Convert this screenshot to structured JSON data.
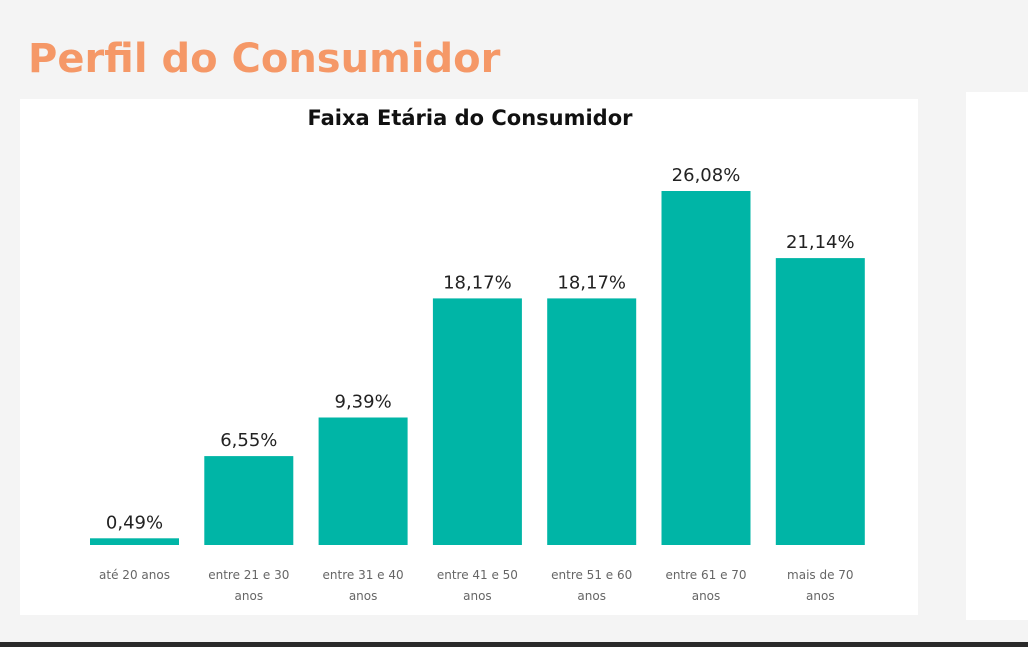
{
  "page": {
    "title": "Perfil do Consumidor"
  },
  "colors": {
    "title": "#f59867",
    "bar": "#00b5a6",
    "card": "#ffffff",
    "background": "#f4f4f4"
  },
  "chart_data": {
    "type": "bar",
    "title": "Faixa Etária do Consumidor",
    "xlabel": "",
    "ylabel": "",
    "ylim": [
      0,
      30
    ],
    "grid": false,
    "categories": [
      [
        "até 20 anos"
      ],
      [
        "entre 21 e 30",
        "anos"
      ],
      [
        "entre 31 e 40",
        "anos"
      ],
      [
        "entre 41 e 50",
        "anos"
      ],
      [
        "entre 51 e 60",
        "anos"
      ],
      [
        "entre 61 e 70",
        "anos"
      ],
      [
        "mais de 70",
        "anos"
      ]
    ],
    "values": [
      0.49,
      6.55,
      9.39,
      18.17,
      18.17,
      26.08,
      21.14
    ],
    "data_labels": [
      "0,49%",
      "6,55%",
      "9,39%",
      "18,17%",
      "18,17%",
      "26,08%",
      "21,14%"
    ]
  }
}
